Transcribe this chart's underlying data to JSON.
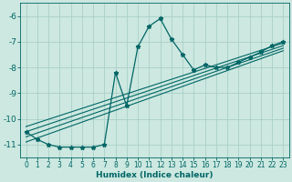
{
  "xlabel": "Humidex (Indice chaleur)",
  "background_color": "#cce8e0",
  "line_color": "#006666",
  "grid_color": "#aacfc8",
  "xlim": [
    -0.5,
    23.5
  ],
  "ylim": [
    -11.5,
    -5.5
  ],
  "yticks": [
    -11,
    -10,
    -9,
    -8,
    -7,
    -6
  ],
  "xticks": [
    0,
    1,
    2,
    3,
    4,
    5,
    6,
    7,
    8,
    9,
    10,
    11,
    12,
    13,
    14,
    15,
    16,
    17,
    18,
    19,
    20,
    21,
    22,
    23
  ],
  "series": [
    [
      0,
      -10.5
    ],
    [
      1,
      -10.8
    ],
    [
      2,
      -11.0
    ],
    [
      3,
      -11.1
    ],
    [
      4,
      -11.1
    ],
    [
      5,
      -11.1
    ],
    [
      6,
      -11.1
    ],
    [
      7,
      -11.0
    ],
    [
      8,
      -8.2
    ],
    [
      9,
      -9.5
    ],
    [
      10,
      -7.2
    ],
    [
      11,
      -6.4
    ],
    [
      12,
      -6.1
    ],
    [
      13,
      -6.9
    ],
    [
      14,
      -7.5
    ],
    [
      15,
      -8.1
    ],
    [
      16,
      -7.9
    ],
    [
      17,
      -8.0
    ],
    [
      18,
      -8.0
    ],
    [
      19,
      -7.8
    ],
    [
      20,
      -7.6
    ],
    [
      21,
      -7.4
    ],
    [
      22,
      -7.15
    ],
    [
      23,
      -7.0
    ]
  ],
  "extra_lines": [
    [
      [
        0,
        -10.3
      ],
      [
        23,
        -7.05
      ]
    ],
    [
      [
        0,
        -10.5
      ],
      [
        23,
        -7.15
      ]
    ],
    [
      [
        0,
        -10.7
      ],
      [
        23,
        -7.25
      ]
    ],
    [
      [
        0,
        -10.9
      ],
      [
        23,
        -7.35
      ]
    ]
  ]
}
